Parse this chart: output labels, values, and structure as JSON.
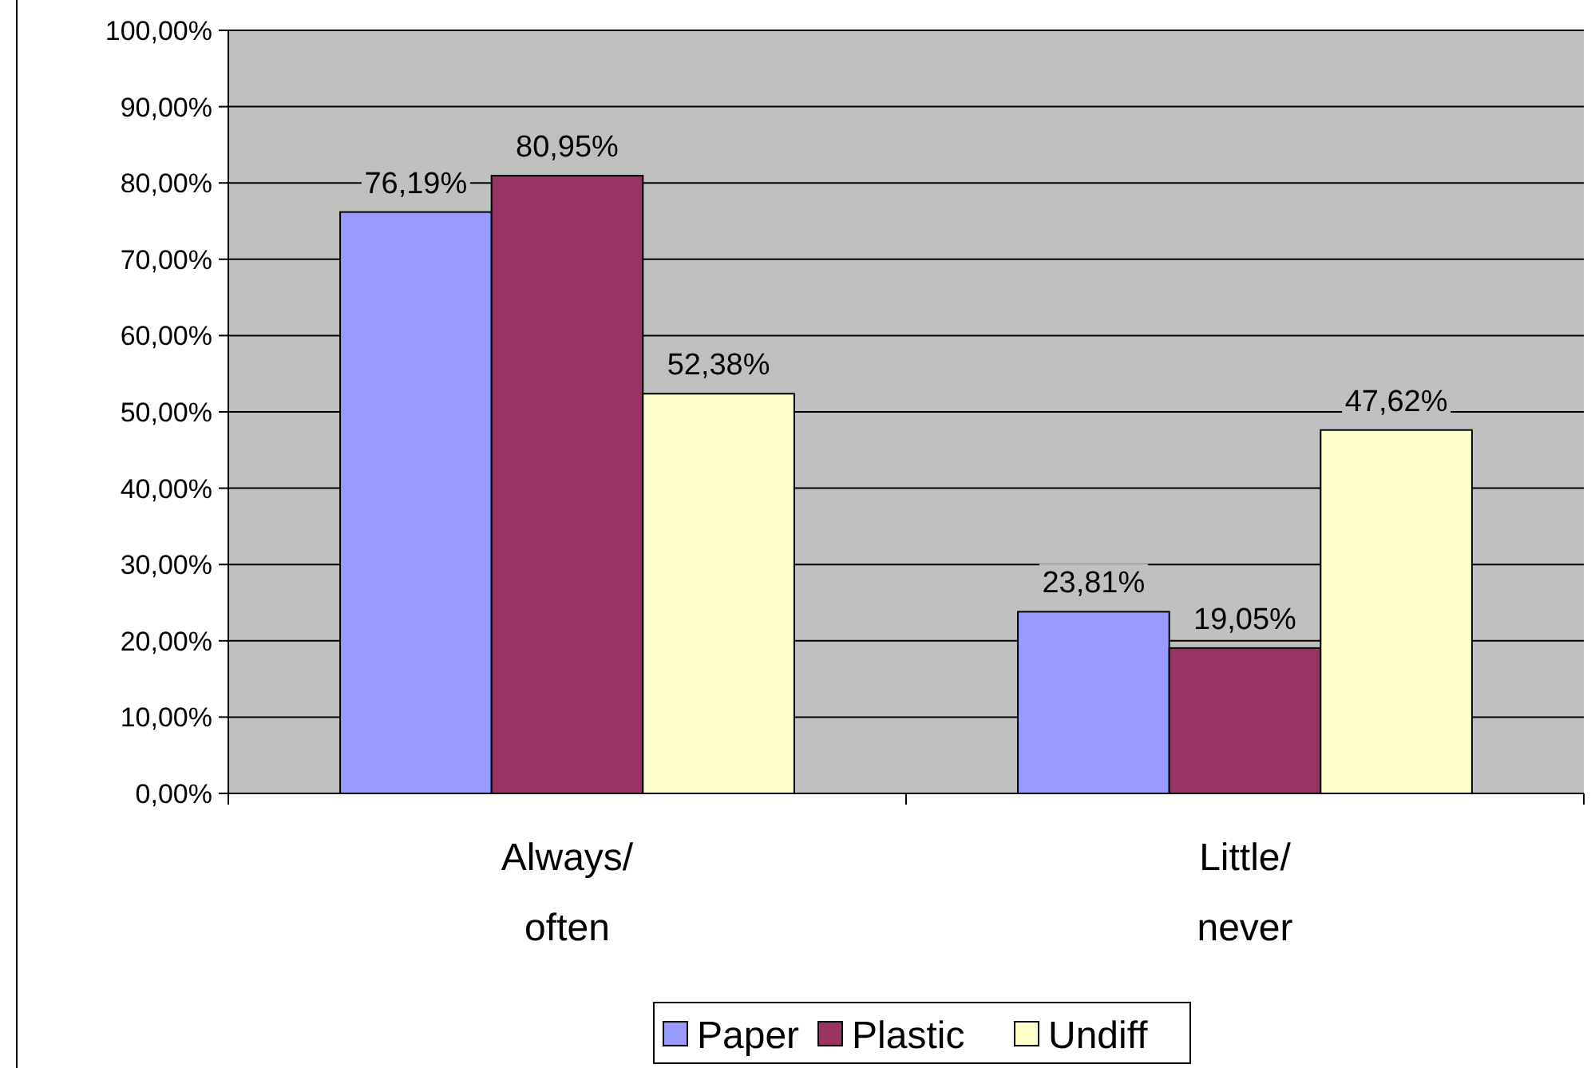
{
  "chart_data": {
    "type": "bar",
    "categories": [
      "Always/\noften",
      "Little/\nnever"
    ],
    "series": [
      {
        "name": "Paper",
        "color": "#9999ff",
        "values": [
          76.19,
          23.81
        ],
        "value_labels": [
          "76,19%",
          "23,81%"
        ]
      },
      {
        "name": "Plastic",
        "color": "#993366",
        "values": [
          80.95,
          19.05
        ],
        "value_labels": [
          "80,95%",
          "19,05%"
        ]
      },
      {
        "name": "Undiff",
        "color": "#ffffcc",
        "values": [
          52.38,
          47.62
        ],
        "value_labels": [
          "52,38%",
          "47,62%"
        ]
      }
    ],
    "ylim": [
      0,
      100
    ],
    "yticks": [
      {
        "value": 0,
        "label": "0,00%"
      },
      {
        "value": 10,
        "label": "10,00%"
      },
      {
        "value": 20,
        "label": "20,00%"
      },
      {
        "value": 30,
        "label": "30,00%"
      },
      {
        "value": 40,
        "label": "40,00%"
      },
      {
        "value": 50,
        "label": "50,00%"
      },
      {
        "value": 60,
        "label": "60,00%"
      },
      {
        "value": 70,
        "label": "70,00%"
      },
      {
        "value": 80,
        "label": "80,00%"
      },
      {
        "value": 90,
        "label": "90,00%"
      },
      {
        "value": 100,
        "label": "100,00%"
      }
    ],
    "grid": "y",
    "legend": "bottom"
  }
}
